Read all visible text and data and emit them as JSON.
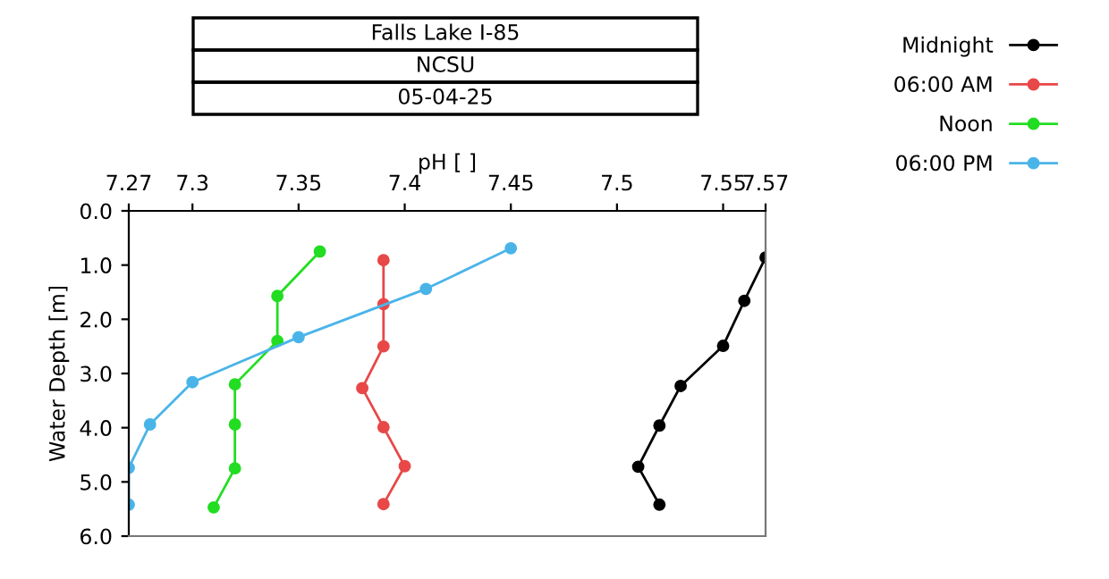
{
  "chart_data": {
    "type": "line",
    "title": "Falls Lake I-85",
    "subtitle": "NCSU",
    "annotations": [
      "05-04-25"
    ],
    "xlabel": "pH [ ]",
    "ylabel": "Water Depth [m]",
    "orientation": "horizontal",
    "xlim": [
      7.27,
      7.57
    ],
    "xticks": [
      7.27,
      7.3,
      7.35,
      7.4,
      7.45,
      7.5,
      7.55,
      7.57
    ],
    "ylim": [
      6,
      0
    ],
    "yticks": [
      {
        "value": 0,
        "label": "0.0"
      },
      {
        "value": 1,
        "label": "1.0"
      },
      {
        "value": 2,
        "label": "2.0"
      },
      {
        "value": 3,
        "label": "3.0"
      },
      {
        "value": 4,
        "label": "4.0"
      },
      {
        "value": 5,
        "label": "5.0"
      },
      {
        "value": 6,
        "label": "6.0"
      }
    ],
    "grid": false,
    "legend": "top right",
    "marker": "circle",
    "line_style": "solid",
    "series": [
      {
        "name": "Midnight",
        "color": "#000000",
        "values": [
          7.57,
          7.56,
          7.55,
          7.53,
          7.52,
          7.51,
          7.52
        ],
        "x": [
          0.86,
          1.66,
          2.49,
          3.23,
          3.96,
          4.72,
          5.42
        ]
      },
      {
        "name": "06:00 AM",
        "color": "#e84848",
        "values": [
          7.39,
          7.39,
          7.39,
          7.38,
          7.39,
          7.4,
          7.39
        ],
        "x": [
          0.91,
          1.72,
          2.5,
          3.27,
          3.99,
          4.71,
          5.41
        ]
      },
      {
        "name": "Noon",
        "color": "#22dd22",
        "values": [
          7.36,
          7.34,
          7.34,
          7.32,
          7.32,
          7.32,
          7.31
        ],
        "x": [
          0.75,
          1.57,
          2.4,
          3.2,
          3.94,
          4.75,
          5.47
        ]
      },
      {
        "name": "06:00 PM",
        "color": "#4ab4e8",
        "values": [
          7.45,
          7.41,
          7.35,
          7.3,
          7.28,
          7.27,
          7.27
        ],
        "x": [
          0.69,
          1.44,
          2.33,
          3.16,
          3.94,
          4.74,
          5.42
        ]
      }
    ]
  }
}
